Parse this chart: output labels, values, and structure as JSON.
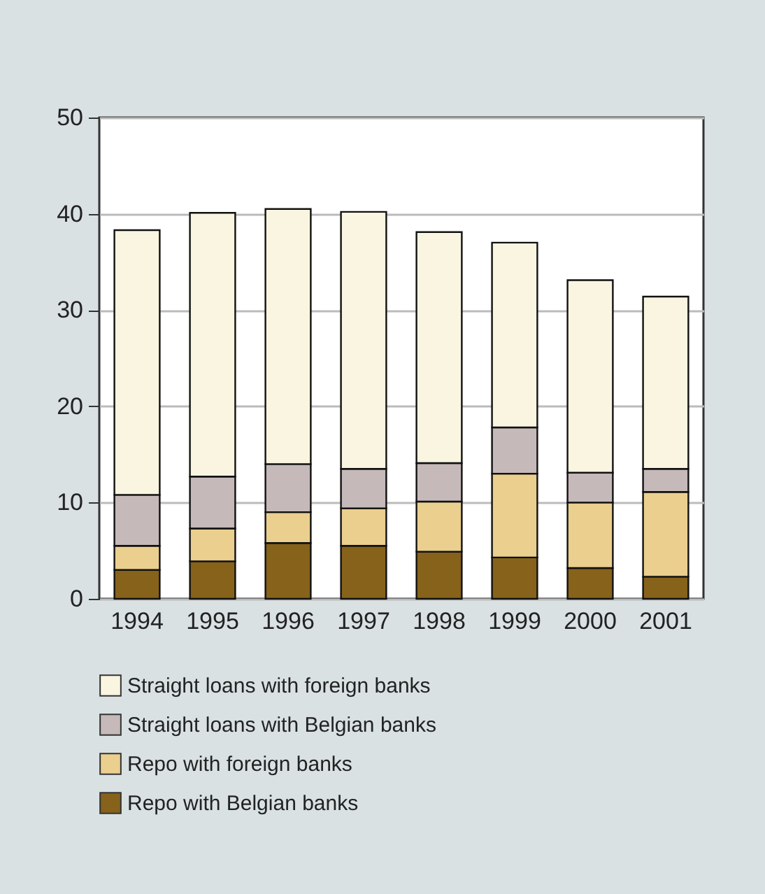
{
  "chart_data": {
    "type": "bar",
    "stacked": true,
    "categories": [
      "1994",
      "1995",
      "1996",
      "1997",
      "1998",
      "1999",
      "2000",
      "2001"
    ],
    "series": [
      {
        "name": "Repo with Belgian banks",
        "color": "#86621a",
        "values": [
          3.0,
          3.9,
          5.8,
          5.5,
          4.9,
          4.3,
          3.2,
          2.3
        ]
      },
      {
        "name": "Repo with foreign banks",
        "color": "#ebcf8f",
        "values": [
          2.5,
          3.4,
          3.2,
          3.9,
          5.2,
          8.7,
          6.8,
          8.8
        ]
      },
      {
        "name": "Straight loans with Belgian banks",
        "color": "#c5b9b9",
        "values": [
          5.3,
          5.4,
          5.0,
          4.1,
          4.0,
          4.8,
          3.1,
          2.4
        ]
      },
      {
        "name": "Straight loans with foreign banks",
        "color": "#faf5e0",
        "values": [
          27.5,
          27.4,
          26.5,
          26.7,
          24.0,
          19.2,
          20.0,
          17.9
        ]
      }
    ],
    "ylim": [
      0,
      50
    ],
    "yticks": [
      0,
      10,
      20,
      30,
      40,
      50
    ],
    "grid": "y",
    "legend": "bottom"
  }
}
